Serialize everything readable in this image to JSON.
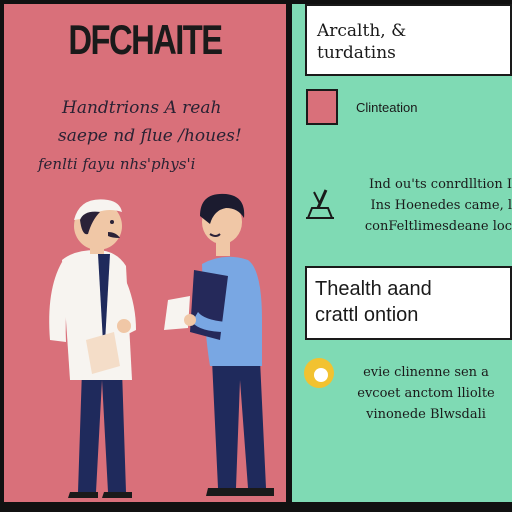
{
  "left": {
    "title": "DFCHAITE",
    "lines": [
      "Handtrions A reah",
      "saepe nd flue /houes!",
      "fenlti fayu nhs'phys'i"
    ]
  },
  "right": {
    "top_card_lines": [
      "Arcalth, &",
      "turdatins"
    ],
    "swatch_label": "Clinteation",
    "block1_lines": [
      "Ind ou'ts conrdlltion I",
      "Ins Hoenedes came, l",
      "conFeltlimesdeane loc"
    ],
    "mid_card_lines": [
      "Thealth aand",
      "crattl ontion"
    ],
    "block2_lines": [
      "evie clinenne sen a",
      "evcoet anctom lliolte",
      "vinonede Blwsdali"
    ]
  },
  "colors": {
    "left_bg": "#d9707a",
    "right_bg": "#7fdab4",
    "swatch": "#d9707a",
    "dot": "#f2c230"
  },
  "icons": [
    "pen-in-cup-icon",
    "yellow-circle-icon"
  ]
}
